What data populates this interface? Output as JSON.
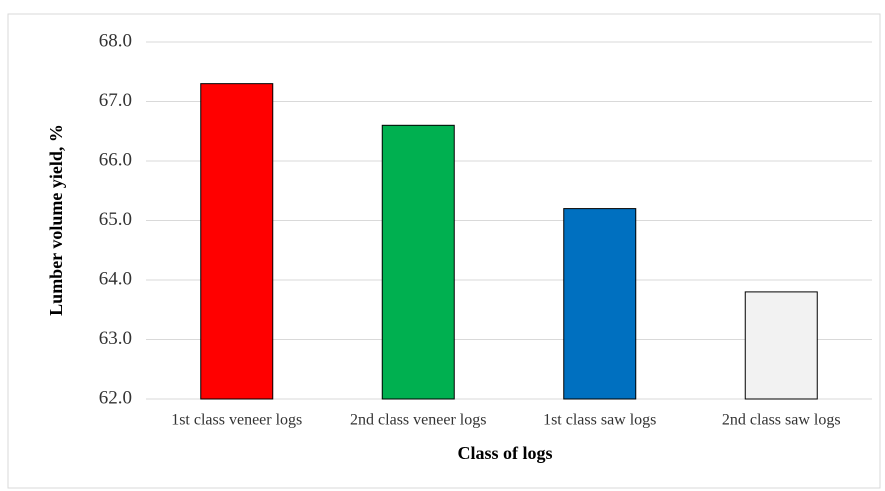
{
  "chart_data": {
    "type": "bar",
    "x_label": "Class of logs",
    "y_label": "Lumber volume yield, %",
    "categories": [
      "1st class veneer logs",
      "2nd class veneer logs",
      "1st class saw logs",
      "2nd class saw logs"
    ],
    "values": [
      67.3,
      66.6,
      65.2,
      63.8
    ],
    "colors": [
      "#ff0000",
      "#00b050",
      "#0070c0",
      "#f2f2f2"
    ],
    "ylim": [
      62,
      68
    ],
    "yticks": [
      {
        "value": 62,
        "label": "62.0"
      },
      {
        "value": 63,
        "label": "63.0"
      },
      {
        "value": 64,
        "label": "64.0"
      },
      {
        "value": 65,
        "label": "65.0"
      },
      {
        "value": 66,
        "label": "66.0"
      },
      {
        "value": 67,
        "label": "67.0"
      },
      {
        "value": 68,
        "label": "68.0"
      }
    ],
    "grid": true
  }
}
